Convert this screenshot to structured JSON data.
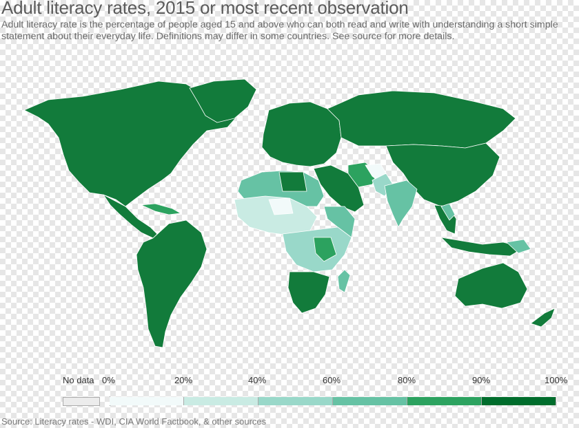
{
  "title": "Adult literacy rates, 2015 or most recent observation",
  "subtitle": "Adult literacy rate is the percentage of people aged 15 and above who can both read and write with understanding a short simple statement about their everyday life. Definitions may differ in some countries. See source for more details.",
  "legend": {
    "no_data_label": "No data",
    "no_data_color": "#ececec",
    "ticks": [
      "0%",
      "20%",
      "40%",
      "60%",
      "80%",
      "90%",
      "100%"
    ],
    "bins": [
      {
        "from": 0,
        "to": 20,
        "color": "#f2fafa"
      },
      {
        "from": 20,
        "to": 40,
        "color": "#c9ebe3"
      },
      {
        "from": 40,
        "to": 60,
        "color": "#99d8c9"
      },
      {
        "from": 60,
        "to": 80,
        "color": "#66c2a4"
      },
      {
        "from": 80,
        "to": 90,
        "color": "#2ca25f"
      },
      {
        "from": 90,
        "to": 100,
        "color": "#006d2c"
      }
    ]
  },
  "colors": {
    "high": "#127b3b",
    "mid_high": "#2ca25f",
    "mid": "#66c2a4",
    "mid_low": "#99d8c9",
    "low": "#c9ebe3",
    "lowest": "#f2fafa"
  },
  "source": "Source: Literacy rates - WDI, CIA World Factbook, & other sources"
}
